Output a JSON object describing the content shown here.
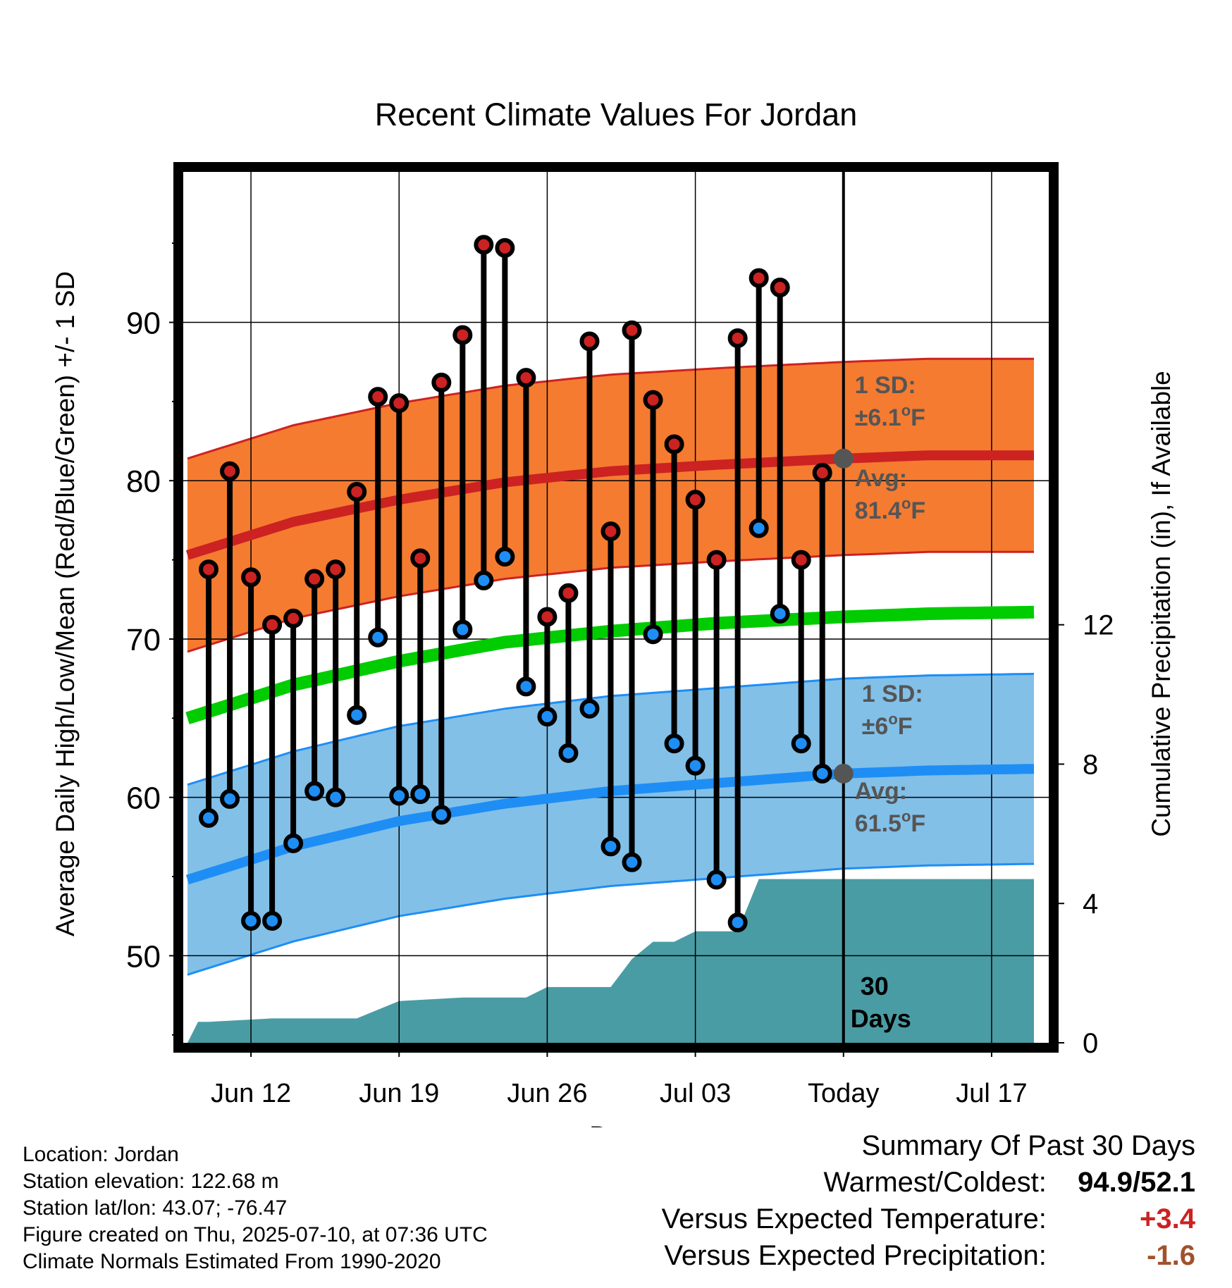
{
  "chart_data": {
    "type": "line",
    "title": "Recent Climate Values For Jordan",
    "xlabel": "Day",
    "ylabel": "Average Daily High/Low/Mean (Red/Blue/Green) +/- 1 SD",
    "y2label": "Cumulative Precipitation (in), If Available",
    "ylim": [
      44.5,
      99.5
    ],
    "y_ticks": [
      50,
      60,
      70,
      80,
      90
    ],
    "y2lim": [
      0,
      25.0
    ],
    "y2_ticks": [
      0,
      4,
      8,
      12
    ],
    "x_ticks": [
      {
        "x": 12,
        "label": "Jun 12"
      },
      {
        "x": 19,
        "label": "Jun 19"
      },
      {
        "x": 26,
        "label": "Jun 26"
      },
      {
        "x": 33,
        "label": "Jul 03"
      },
      {
        "x": 40,
        "label": "Today"
      },
      {
        "x": 47,
        "label": "Jul 17"
      }
    ],
    "xlim": [
      8.8,
      49.7
    ],
    "grid": true,
    "today_x": 40,
    "daily": [
      {
        "x": 10,
        "high": 74.4,
        "low": 58.7
      },
      {
        "x": 11,
        "high": 80.6,
        "low": 59.9
      },
      {
        "x": 12,
        "high": 73.9,
        "low": 52.2
      },
      {
        "x": 13,
        "high": 70.9,
        "low": 52.2
      },
      {
        "x": 14,
        "high": 71.3,
        "low": 57.1
      },
      {
        "x": 15,
        "high": 73.8,
        "low": 60.4
      },
      {
        "x": 16,
        "high": 74.4,
        "low": 60.0
      },
      {
        "x": 17,
        "high": 79.3,
        "low": 65.2
      },
      {
        "x": 18,
        "high": 85.3,
        "low": 70.1
      },
      {
        "x": 19,
        "high": 84.9,
        "low": 60.1
      },
      {
        "x": 20,
        "high": 75.1,
        "low": 60.2
      },
      {
        "x": 21,
        "high": 86.2,
        "low": 58.9
      },
      {
        "x": 22,
        "high": 89.2,
        "low": 70.6
      },
      {
        "x": 23,
        "high": 94.9,
        "low": 73.7
      },
      {
        "x": 24,
        "high": 94.7,
        "low": 75.2
      },
      {
        "x": 25,
        "high": 86.5,
        "low": 67.0
      },
      {
        "x": 26,
        "high": 71.4,
        "low": 65.1
      },
      {
        "x": 27,
        "high": 72.9,
        "low": 62.8
      },
      {
        "x": 28,
        "high": 88.8,
        "low": 65.6
      },
      {
        "x": 29,
        "high": 76.8,
        "low": 56.9
      },
      {
        "x": 30,
        "high": 89.5,
        "low": 55.9
      },
      {
        "x": 31,
        "high": 85.1,
        "low": 70.3
      },
      {
        "x": 32,
        "high": 82.3,
        "low": 63.4
      },
      {
        "x": 33,
        "high": 78.8,
        "low": 62.0
      },
      {
        "x": 34,
        "high": 75.0,
        "low": 54.8
      },
      {
        "x": 35,
        "high": 89.0,
        "low": 52.1
      },
      {
        "x": 36,
        "high": 92.8,
        "low": 77.0
      },
      {
        "x": 37,
        "high": 92.2,
        "low": 71.6
      },
      {
        "x": 38,
        "high": 75.0,
        "low": 63.4
      },
      {
        "x": 39,
        "high": 80.5,
        "low": 61.5
      }
    ],
    "normals": {
      "x": [
        9,
        14,
        19,
        24,
        29,
        34,
        40,
        44,
        49
      ],
      "high_avg": [
        75.3,
        77.4,
        78.8,
        79.9,
        80.6,
        81.0,
        81.4,
        81.6,
        81.6
      ],
      "low_avg": [
        54.8,
        56.9,
        58.5,
        59.6,
        60.4,
        60.9,
        61.5,
        61.7,
        61.8
      ],
      "mean_avg": [
        65.0,
        67.1,
        68.6,
        69.8,
        70.5,
        71.0,
        71.4,
        71.6,
        71.7
      ],
      "high_sd": 6.1,
      "low_sd": 6.0
    },
    "precip": {
      "x": [
        9,
        9.5,
        10,
        13,
        17,
        19,
        22,
        25,
        26,
        29,
        30,
        31,
        32,
        33,
        35,
        36,
        49
      ],
      "values": [
        0,
        0.6,
        0.6,
        0.7,
        0.7,
        1.2,
        1.3,
        1.3,
        1.6,
        1.6,
        2.4,
        2.9,
        2.9,
        3.2,
        3.2,
        4.7,
        4.7
      ]
    },
    "annotations": {
      "high_sd_line1": "1 SD:",
      "high_sd_line2": "±6.1",
      "high_avg_line1": "Avg:",
      "high_avg_line2": "81.4",
      "low_sd_line1": "1 SD:",
      "low_sd_line2": "±6",
      "low_avg_line1": "Avg:",
      "low_avg_line2": "61.5",
      "deg_unit": "o",
      "f_unit": "F",
      "precip_line1": "30",
      "precip_line2": "Days"
    },
    "colors": {
      "high_band": "#f57b30",
      "high_line": "#cc2222",
      "low_band": "#82c0e8",
      "low_line": "#1e8ef5",
      "mean_line": "#00cc00",
      "precip": "#4a9ca4",
      "high_dot": "#cc2222",
      "low_dot": "#1e8ef5",
      "annotation": "#555555"
    }
  },
  "info": {
    "location": "Location: Jordan",
    "elevation": "Station elevation: 122.68 m",
    "latlon": "Station lat/lon: 43.07; -76.47",
    "created": "Figure created on Thu, 2025-07-10, at 07:36 UTC",
    "normals": "Climate Normals Estimated From 1990-2020"
  },
  "summary": {
    "title": "Summary Of Past 30 Days",
    "warm_cold_label": "Warmest/Coldest:",
    "warm_cold_value": "94.9/52.1",
    "temp_label": "Versus Expected Temperature:",
    "temp_value": "+3.4",
    "temp_color": "#cc2222",
    "precip_label": "Versus Expected Precipitation:",
    "precip_value": "-1.6",
    "precip_color": "#a0522d"
  }
}
